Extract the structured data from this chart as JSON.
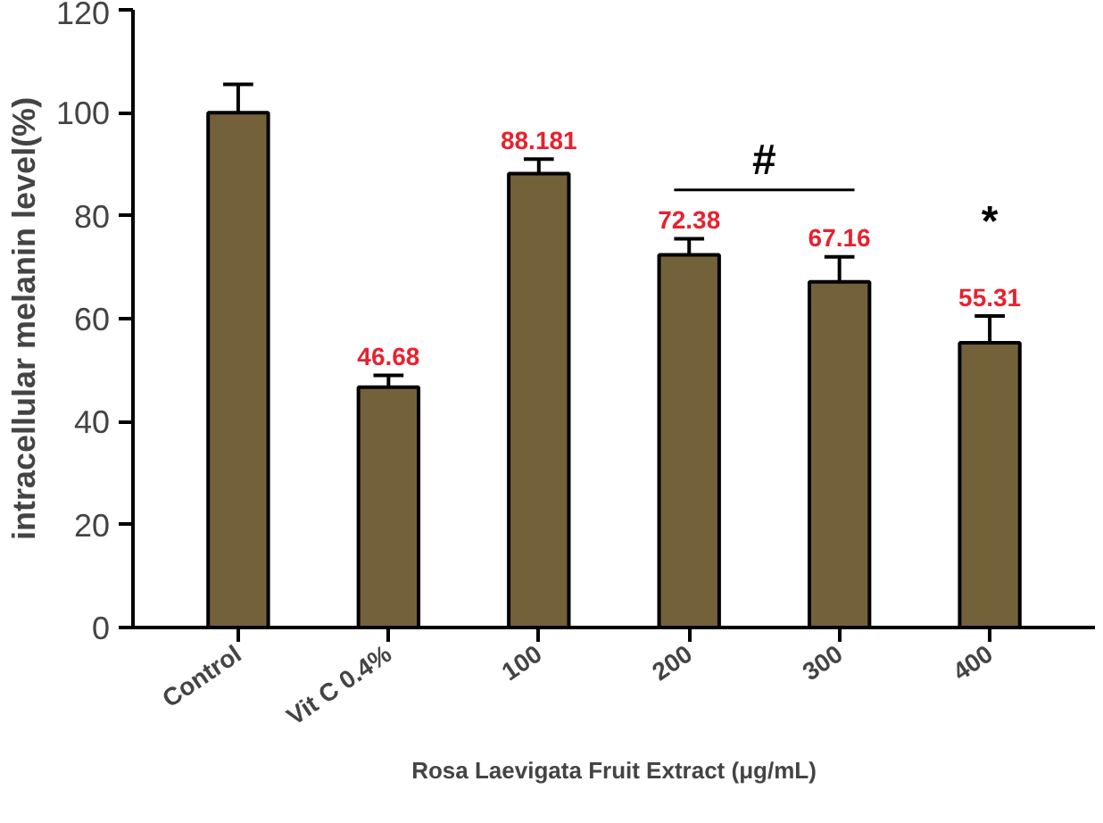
{
  "chart_data": {
    "type": "bar",
    "ylabel": "intracellular melanin level(%)",
    "xlabel": "Rosa Laevigata Fruit Extract (μg/mL)",
    "categories": [
      "Control",
      "Vit C 0.4%",
      "100",
      "200",
      "300",
      "400"
    ],
    "values": [
      100,
      46.68,
      88.181,
      72.38,
      67.16,
      55.31
    ],
    "value_labels": [
      null,
      "46.68",
      "88.181",
      "72.38",
      "67.16",
      "55.31"
    ],
    "errors": [
      [
        100,
        105.5
      ],
      [
        46.68,
        49
      ],
      [
        88.181,
        91
      ],
      [
        72.38,
        75.5
      ],
      [
        67.16,
        72
      ],
      [
        55.31,
        60.5
      ]
    ],
    "color": "#736139",
    "ylim": [
      0,
      120
    ],
    "yticks": [
      0,
      20,
      40,
      60,
      80,
      100,
      120
    ],
    "grid": false,
    "annotations": [
      "#",
      "*"
    ]
  }
}
